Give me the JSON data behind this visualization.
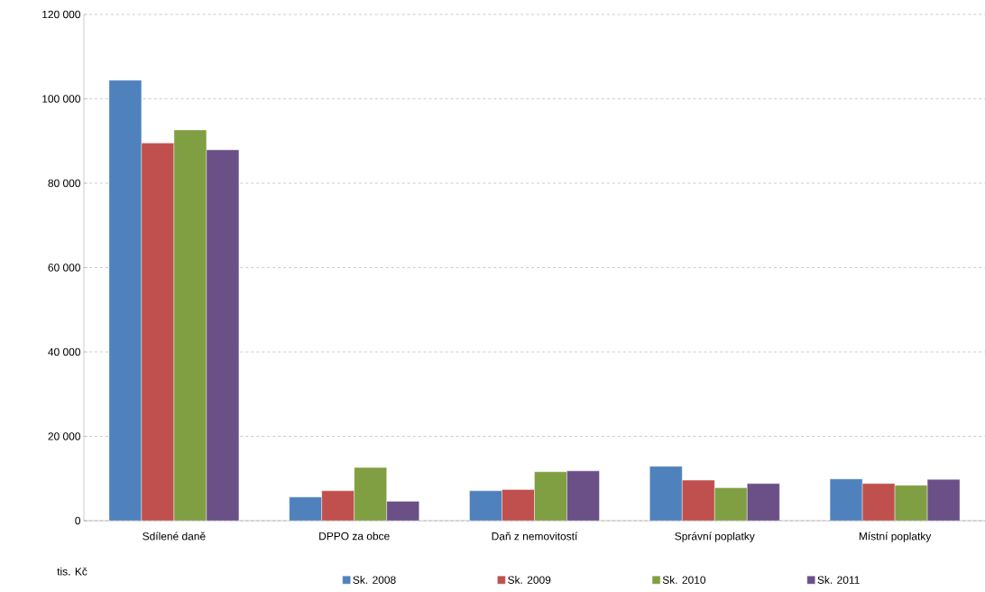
{
  "chart_data": {
    "type": "bar",
    "ylabel": "tis. Kč",
    "categories": [
      "Sdílené daně",
      "DPPO za obce",
      "Daň z nemovitostí",
      "Správní poplatky",
      "Místní poplatky"
    ],
    "series": [
      {
        "name": "Sk. 2008",
        "color": "#4f81bd",
        "values": [
          104400,
          5600,
          7100,
          12900,
          9900
        ]
      },
      {
        "name": "Sk. 2009",
        "color": "#c0504d",
        "values": [
          89500,
          7100,
          7400,
          9600,
          8800
        ]
      },
      {
        "name": "Sk. 2010",
        "color": "#7f9f42",
        "values": [
          92600,
          12600,
          11600,
          7800,
          8400
        ]
      },
      {
        "name": "Sk. 2011",
        "color": "#6a5087",
        "values": [
          87900,
          4600,
          11800,
          8800,
          9800
        ]
      }
    ],
    "ylim": [
      0,
      120000
    ],
    "yticks": [
      0,
      {
        "value": 20000,
        "label": "20 000"
      },
      {
        "value": 40000,
        "label": "40 000"
      },
      {
        "value": 60000,
        "label": "60 000"
      },
      {
        "value": 80000,
        "label": "80 000"
      },
      {
        "value": 100000,
        "label": "100 000"
      },
      {
        "value": 120000,
        "label": "120 000"
      }
    ],
    "grid": "y",
    "legend": "bottom"
  }
}
